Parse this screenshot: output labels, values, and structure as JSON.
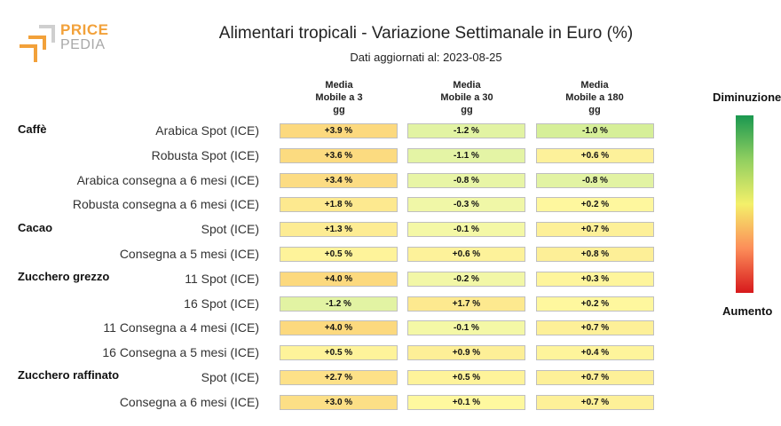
{
  "logo": {
    "line1": "PRICE",
    "line2": "PEDIA",
    "accent": "#f2a13a"
  },
  "title": "Alimentari tropicali - Variazione Settimanale in Euro (%)",
  "subtitle": "Dati aggiornati al: 2023-08-25",
  "columns": [
    {
      "line1": "Media",
      "line2": "Mobile a 3",
      "line3": "gg"
    },
    {
      "line1": "Media",
      "line2": "Mobile a 30",
      "line3": "gg"
    },
    {
      "line1": "Media",
      "line2": "Mobile a 180",
      "line3": "gg"
    }
  ],
  "groups": [
    "Caffè",
    "Cacao",
    "Zucchero grezzo",
    "Zucchero raffinato"
  ],
  "rows": [
    {
      "label": "Arabica Spot (ICE)",
      "values": [
        "+3.9 %",
        "-1.2 %",
        "-1.0 %"
      ],
      "colors": [
        "#fcd97e",
        "#e2f3a3",
        "#d6ef98"
      ]
    },
    {
      "label": "Robusta Spot (ICE)",
      "values": [
        "+3.6 %",
        "-1.1 %",
        "+0.6 %"
      ],
      "colors": [
        "#fcdb80",
        "#e4f4a5",
        "#fdf19a"
      ]
    },
    {
      "label": "Arabica consegna a 6 mesi (ICE)",
      "values": [
        "+3.4 %",
        "-0.8 %",
        "-0.8 %"
      ],
      "colors": [
        "#fcdc83",
        "#e8f5a6",
        "#e2f3a3"
      ]
    },
    {
      "label": "Robusta consegna a 6 mesi (ICE)",
      "values": [
        "+1.8 %",
        "-0.3 %",
        "+0.2 %"
      ],
      "colors": [
        "#fde98f",
        "#f0f7a7",
        "#fef79e"
      ]
    },
    {
      "label": "Spot (ICE)",
      "values": [
        "+1.3 %",
        "-0.1 %",
        "+0.7 %"
      ],
      "colors": [
        "#fdec93",
        "#f4f8a6",
        "#fdf098"
      ]
    },
    {
      "label": "Consegna a 5 mesi (ICE)",
      "values": [
        "+0.5 %",
        "+0.6 %",
        "+0.8 %"
      ],
      "colors": [
        "#fef39a",
        "#fdf29a",
        "#fdef97"
      ]
    },
    {
      "label": "11 Spot (ICE)",
      "values": [
        "+4.0 %",
        "-0.2 %",
        "+0.3 %"
      ],
      "colors": [
        "#fcd97e",
        "#f2f7a7",
        "#fef59c"
      ]
    },
    {
      "label": "16 Spot (ICE)",
      "values": [
        "-1.2 %",
        "+1.7 %",
        "+0.2 %"
      ],
      "colors": [
        "#e2f3a3",
        "#fde98f",
        "#fef79e"
      ]
    },
    {
      "label": "11 Consegna a 4 mesi (ICE)",
      "values": [
        "+4.0 %",
        "-0.1 %",
        "+0.7 %"
      ],
      "colors": [
        "#fcd97e",
        "#f4f8a6",
        "#fdf098"
      ]
    },
    {
      "label": "16 Consegna a 5 mesi (ICE)",
      "values": [
        "+0.5 %",
        "+0.9 %",
        "+0.4 %"
      ],
      "colors": [
        "#fef39a",
        "#fdef97",
        "#fef49b"
      ]
    },
    {
      "label": "Spot (ICE)",
      "values": [
        "+2.7 %",
        "+0.5 %",
        "+0.7 %"
      ],
      "colors": [
        "#fde188",
        "#fef39a",
        "#fdf098"
      ]
    },
    {
      "label": "Consegna a 6 mesi (ICE)",
      "values": [
        "+3.0 %",
        "+0.1 %",
        "+0.7 %"
      ],
      "colors": [
        "#fcdf86",
        "#fef89f",
        "#fdf098"
      ]
    }
  ],
  "legend": {
    "top_label": "Diminuzione",
    "bottom_label": "Aumento",
    "top_color": "#1a9850",
    "bottom_color": "#d7191c"
  }
}
